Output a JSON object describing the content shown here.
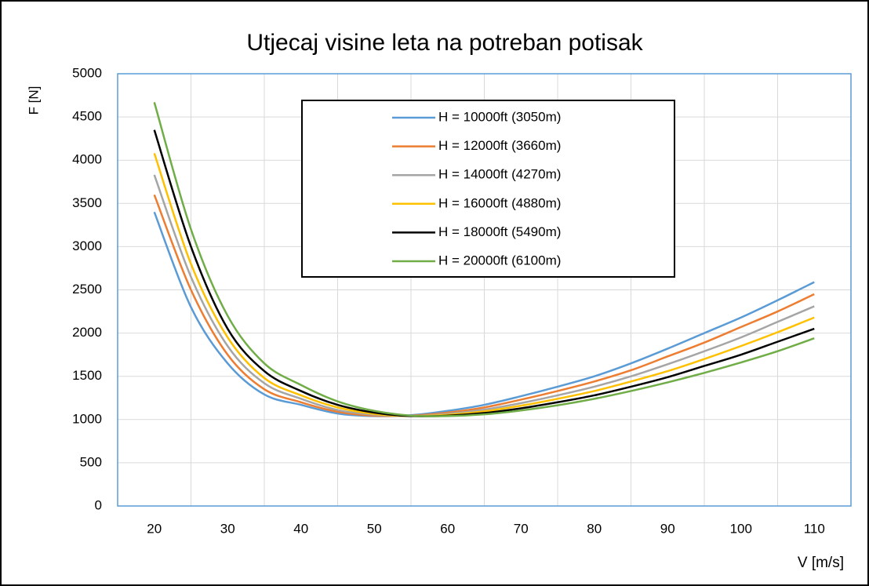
{
  "chart_data": {
    "type": "line",
    "title": "Utjecaj visine leta na potreban potisak",
    "x_label": "V [m/s]",
    "y_label": "F [N]",
    "x": [
      20,
      25,
      30,
      35,
      40,
      45,
      50,
      55,
      60,
      65,
      70,
      75,
      80,
      85,
      90,
      95,
      100,
      105,
      110
    ],
    "xlim": [
      15,
      115
    ],
    "xticks": [
      20,
      30,
      40,
      50,
      60,
      70,
      80,
      90,
      100,
      110
    ],
    "ylim": [
      0,
      5000
    ],
    "yticks": [
      0,
      500,
      1000,
      1500,
      2000,
      2500,
      3000,
      3500,
      4000,
      4500,
      5000
    ],
    "grid": true,
    "legend": "top",
    "series": [
      {
        "name": "H = 10000ft (3050m)",
        "color": "#5b9bd5",
        "values": [
          3400,
          2300,
          1650,
          1290,
          1170,
          1070,
          1040,
          1050,
          1100,
          1170,
          1270,
          1380,
          1500,
          1650,
          1820,
          2000,
          2180,
          2380,
          2590
        ]
      },
      {
        "name": "H = 12000ft (3660m)",
        "color": "#ed7d31",
        "values": [
          3600,
          2500,
          1750,
          1350,
          1200,
          1090,
          1045,
          1045,
          1080,
          1140,
          1230,
          1330,
          1440,
          1570,
          1730,
          1890,
          2070,
          2250,
          2450
        ]
      },
      {
        "name": "H = 14000ft (4270m)",
        "color": "#a5a5a5",
        "values": [
          3830,
          2650,
          1850,
          1420,
          1240,
          1110,
          1055,
          1040,
          1065,
          1115,
          1190,
          1280,
          1380,
          1500,
          1640,
          1790,
          1950,
          2130,
          2310
        ]
      },
      {
        "name": "H = 16000ft (4880m)",
        "color": "#ffc000",
        "values": [
          4080,
          2800,
          1950,
          1480,
          1280,
          1140,
          1065,
          1040,
          1055,
          1095,
          1160,
          1240,
          1330,
          1440,
          1560,
          1700,
          1850,
          2010,
          2180
        ]
      },
      {
        "name": "H = 18000ft (5490m)",
        "color": "#000000",
        "values": [
          4350,
          3000,
          2050,
          1560,
          1330,
          1170,
          1080,
          1040,
          1045,
          1075,
          1130,
          1200,
          1280,
          1380,
          1490,
          1620,
          1750,
          1900,
          2050
        ]
      },
      {
        "name": "H = 20000ft (6100m)",
        "color": "#70ad47",
        "values": [
          4670,
          3200,
          2200,
          1650,
          1400,
          1210,
          1100,
          1045,
          1040,
          1060,
          1105,
          1165,
          1240,
          1330,
          1430,
          1540,
          1660,
          1790,
          1940
        ]
      }
    ]
  }
}
